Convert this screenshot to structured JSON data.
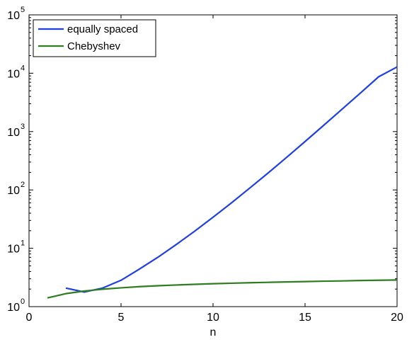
{
  "chart_data": {
    "type": "line",
    "title": "",
    "xlabel": "n",
    "ylabel": "",
    "xlim": [
      0,
      20
    ],
    "ylim": [
      1,
      100000
    ],
    "yscale": "log",
    "grid": false,
    "legend_position": "top-left",
    "x_ticks": [
      0,
      5,
      10,
      15,
      20
    ],
    "y_ticks": [
      {
        "value": 1,
        "base": "10",
        "exp": "0"
      },
      {
        "value": 10,
        "base": "10",
        "exp": "1"
      },
      {
        "value": 100,
        "base": "10",
        "exp": "2"
      },
      {
        "value": 1000,
        "base": "10",
        "exp": "3"
      },
      {
        "value": 10000,
        "base": "10",
        "exp": "4"
      },
      {
        "value": 100000,
        "base": "10",
        "exp": "5"
      }
    ],
    "series": [
      {
        "name": "equally spaced",
        "color": "#1f3fe0",
        "points": [
          [
            2,
            2.08
          ],
          [
            3,
            1.78
          ],
          [
            4,
            2.08
          ],
          [
            5,
            2.83
          ],
          [
            6,
            4.4
          ],
          [
            7,
            7.0
          ],
          [
            8,
            11.6
          ],
          [
            9,
            19.6
          ],
          [
            10,
            34
          ],
          [
            11,
            60
          ],
          [
            12,
            108
          ],
          [
            13,
            196
          ],
          [
            14,
            362
          ],
          [
            15,
            675
          ],
          [
            16,
            1270
          ],
          [
            17,
            2400
          ],
          [
            18,
            4550
          ],
          [
            19,
            8700
          ],
          [
            20,
            12800
          ]
        ]
      },
      {
        "name": "Chebyshev",
        "color": "#2e7d1e",
        "points": [
          [
            1,
            1.41
          ],
          [
            2,
            1.67
          ],
          [
            3,
            1.85
          ],
          [
            4,
            1.99
          ],
          [
            5,
            2.1
          ],
          [
            6,
            2.2
          ],
          [
            7,
            2.28
          ],
          [
            8,
            2.35
          ],
          [
            9,
            2.41
          ],
          [
            10,
            2.47
          ],
          [
            11,
            2.52
          ],
          [
            12,
            2.57
          ],
          [
            13,
            2.61
          ],
          [
            14,
            2.65
          ],
          [
            15,
            2.69
          ],
          [
            16,
            2.73
          ],
          [
            17,
            2.76
          ],
          [
            18,
            2.8
          ],
          [
            19,
            2.83
          ],
          [
            20,
            2.86
          ]
        ]
      }
    ]
  }
}
